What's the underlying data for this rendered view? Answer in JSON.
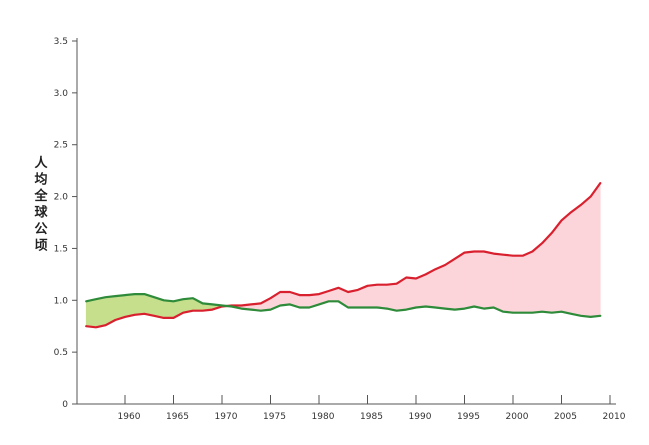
{
  "chart_data": {
    "type": "line",
    "title": "",
    "xlabel": "",
    "ylabel": "人均全球公顷",
    "xlim": [
      1956,
      2010
    ],
    "ylim": [
      0,
      3.5
    ],
    "grid": false,
    "legend": "none",
    "x_ticks": [
      1960,
      1965,
      1970,
      1975,
      1980,
      1985,
      1990,
      1995,
      2000,
      2005,
      2010
    ],
    "y_ticks": [
      0,
      0.5,
      1.0,
      1.5,
      2.0,
      2.5,
      3.0,
      3.5
    ],
    "x_tick_labels": [
      "1960",
      "1965",
      "1970",
      "1975",
      "1980",
      "1985",
      "1990",
      "1995",
      "2000",
      "2005",
      "2010"
    ],
    "y_tick_labels": [
      "0",
      "0.5",
      "1.0",
      "1.5",
      "2.0",
      "2.5",
      "3.0",
      "3.5"
    ],
    "colors": {
      "footprint": "#d9202e",
      "biocapacity": "#2e8b3a",
      "reserve_fill": "#c6df8c",
      "deficit_fill": "#fcd5da"
    },
    "x": [
      1956,
      1957,
      1958,
      1959,
      1960,
      1961,
      1962,
      1963,
      1964,
      1965,
      1966,
      1967,
      1968,
      1969,
      1970,
      1971,
      1972,
      1973,
      1974,
      1975,
      1976,
      1977,
      1978,
      1979,
      1980,
      1981,
      1982,
      1983,
      1984,
      1985,
      1986,
      1987,
      1988,
      1989,
      1990,
      1991,
      1992,
      1993,
      1994,
      1995,
      1996,
      1997,
      1998,
      1999,
      2000,
      2001,
      2002,
      2003,
      2004,
      2005,
      2006,
      2007,
      2008,
      2009
    ],
    "series": [
      {
        "key": "footprint",
        "values": [
          0.75,
          0.74,
          0.76,
          0.81,
          0.84,
          0.86,
          0.87,
          0.85,
          0.83,
          0.83,
          0.88,
          0.9,
          0.9,
          0.91,
          0.94,
          0.95,
          0.95,
          0.96,
          0.97,
          1.02,
          1.08,
          1.08,
          1.05,
          1.05,
          1.06,
          1.09,
          1.12,
          1.08,
          1.1,
          1.14,
          1.15,
          1.15,
          1.16,
          1.22,
          1.21,
          1.25,
          1.3,
          1.34,
          1.4,
          1.46,
          1.47,
          1.47,
          1.45,
          1.44,
          1.43,
          1.43,
          1.47,
          1.55,
          1.65,
          1.77,
          1.85,
          1.92,
          2.0,
          2.13
        ]
      },
      {
        "key": "biocapacity",
        "values": [
          0.99,
          1.01,
          1.03,
          1.04,
          1.05,
          1.06,
          1.06,
          1.03,
          1.0,
          0.99,
          1.01,
          1.02,
          0.97,
          0.96,
          0.95,
          0.94,
          0.92,
          0.91,
          0.9,
          0.91,
          0.95,
          0.96,
          0.93,
          0.93,
          0.96,
          0.99,
          0.99,
          0.93,
          0.93,
          0.93,
          0.93,
          0.92,
          0.9,
          0.91,
          0.93,
          0.94,
          0.93,
          0.92,
          0.91,
          0.92,
          0.94,
          0.92,
          0.93,
          0.89,
          0.88,
          0.88,
          0.88,
          0.89,
          0.88,
          0.89,
          0.87,
          0.85,
          0.84,
          0.85
        ]
      }
    ]
  }
}
